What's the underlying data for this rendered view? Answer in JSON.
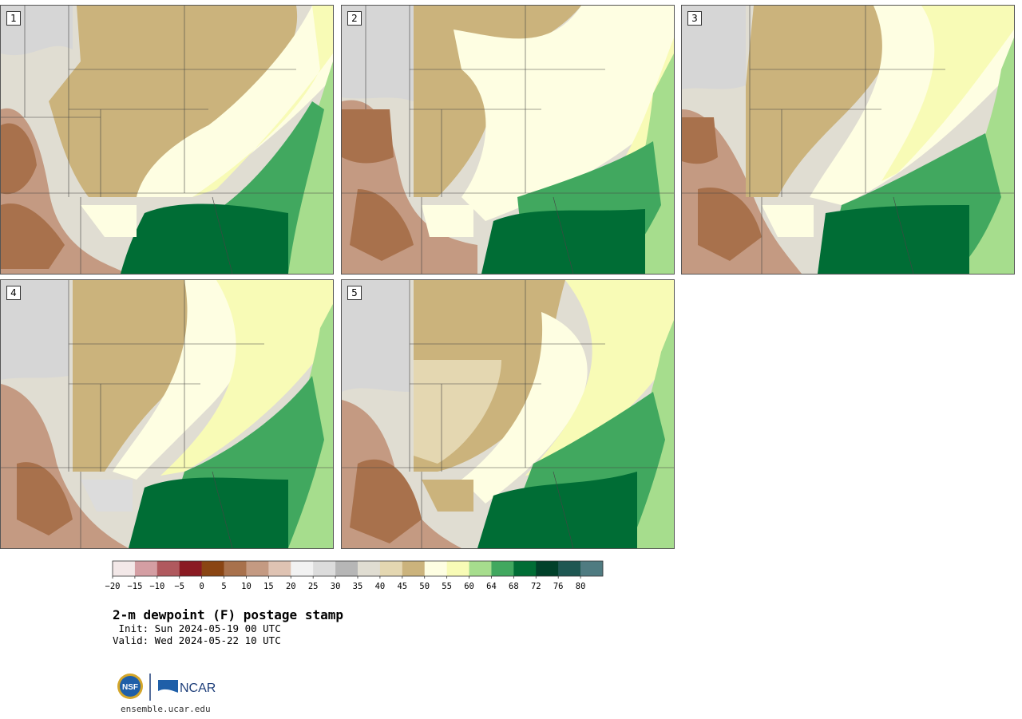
{
  "panels": [
    {
      "label": "1"
    },
    {
      "label": "2"
    },
    {
      "label": "3"
    },
    {
      "label": "4"
    },
    {
      "label": "5"
    }
  ],
  "colorbar": {
    "colors": [
      "#f3e8e8",
      "#d49ea3",
      "#b0595e",
      "#8a1a22",
      "#8a4513",
      "#a8714c",
      "#c49a82",
      "#dfc3b3",
      "#f2f2f2",
      "#dcdcdc",
      "#b6b6b6",
      "#e0ddd2",
      "#e4d7b1",
      "#cbb37c",
      "#fefee2",
      "#f8fbb6",
      "#a6dd8d",
      "#41a85f",
      "#006d35",
      "#01412a",
      "#1e5752",
      "#4f7b81"
    ],
    "tick_labels": [
      "−20",
      "−15",
      "−10",
      "−5",
      "0",
      "5",
      "10",
      "15",
      "20",
      "25",
      "30",
      "35",
      "40",
      "45",
      "50",
      "55",
      "60",
      "64",
      "68",
      "72",
      "76",
      "80"
    ]
  },
  "text": {
    "title": "2-m dewpoint (F) postage stamp",
    "init": " Init: Sun 2024-05-19 00 UTC",
    "valid": "Valid: Wed 2024-05-22 10 UTC",
    "url": "ensemble.ucar.edu"
  },
  "logos": {
    "nsf": "NSF",
    "ncar": "NCAR"
  }
}
